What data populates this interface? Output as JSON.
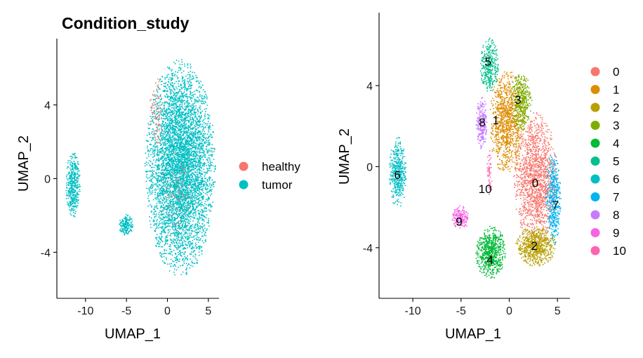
{
  "chart_data": [
    {
      "type": "scatter",
      "title": "Condition_study",
      "xlabel": "UMAP_1",
      "ylabel": "UMAP_2",
      "xlim": [
        -13.5,
        6.3
      ],
      "ylim": [
        -6.5,
        7.6
      ],
      "xticks": [
        -10,
        -5,
        0,
        5
      ],
      "yticks": [
        -4,
        0,
        4
      ],
      "legend_position": "right",
      "colors": {
        "healthy": "#F8766D",
        "tumor": "#00BFC4"
      },
      "series": [
        {
          "name": "tumor",
          "color": "#00BFC4",
          "regions": [
            {
              "cx": 1.5,
              "cy": 0.6,
              "rx": 4.3,
              "ry": 5.9,
              "n": 5200
            },
            {
              "cx": -11.6,
              "cy": -0.3,
              "rx": 0.9,
              "ry": 1.8,
              "n": 420
            },
            {
              "cx": -5.1,
              "cy": -2.5,
              "rx": 0.9,
              "ry": 0.6,
              "n": 180
            }
          ]
        },
        {
          "name": "healthy",
          "color": "#F8766D",
          "regions": [
            {
              "cx": -1.4,
              "cy": 3.3,
              "rx": 0.9,
              "ry": 2.2,
              "n": 80
            },
            {
              "cx": 1.0,
              "cy": -1.0,
              "rx": 2.0,
              "ry": 2.5,
              "n": 60
            }
          ]
        }
      ]
    },
    {
      "type": "scatter",
      "title": "",
      "xlabel": "UMAP_1",
      "ylabel": "UMAP_2",
      "xlim": [
        -13.5,
        6.3
      ],
      "ylim": [
        -6.5,
        7.6
      ],
      "xticks": [
        -10,
        -5,
        0,
        5
      ],
      "yticks": [
        -4,
        0,
        4
      ],
      "legend_position": "right",
      "series": [
        {
          "name": "0",
          "color": "#F8766D",
          "label_pos": [
            2.7,
            -0.8
          ],
          "regions": [
            {
              "cx": 2.7,
              "cy": -0.6,
              "rx": 2.3,
              "ry": 3.3,
              "n": 1500
            }
          ]
        },
        {
          "name": "1",
          "color": "#DE8C00",
          "label_pos": [
            -1.4,
            2.3
          ],
          "regions": [
            {
              "cx": -0.3,
              "cy": 2.2,
              "rx": 1.8,
              "ry": 2.6,
              "n": 1000
            }
          ]
        },
        {
          "name": "2",
          "color": "#B79F00",
          "label_pos": [
            2.6,
            -3.9
          ],
          "regions": [
            {
              "cx": 2.7,
              "cy": -3.9,
              "rx": 2.1,
              "ry": 1.0,
              "n": 650
            }
          ]
        },
        {
          "name": "3",
          "color": "#7CAE00",
          "label_pos": [
            0.9,
            3.3
          ],
          "regions": [
            {
              "cx": 1.2,
              "cy": 3.3,
              "rx": 1.1,
              "ry": 1.5,
              "n": 380
            }
          ]
        },
        {
          "name": "4",
          "color": "#00BA38",
          "label_pos": [
            -2.0,
            -4.6
          ],
          "regions": [
            {
              "cx": -2.0,
              "cy": -4.2,
              "rx": 1.6,
              "ry": 1.3,
              "n": 650
            }
          ]
        },
        {
          "name": "5",
          "color": "#00C08B",
          "label_pos": [
            -2.2,
            5.2
          ],
          "regions": [
            {
              "cx": -2.1,
              "cy": 5.0,
              "rx": 1.0,
              "ry": 1.4,
              "n": 330
            }
          ]
        },
        {
          "name": "6",
          "color": "#00BFC4",
          "label_pos": [
            -11.6,
            -0.4
          ],
          "regions": [
            {
              "cx": -11.6,
              "cy": -0.3,
              "rx": 0.9,
              "ry": 1.8,
              "n": 420
            }
          ]
        },
        {
          "name": "7",
          "color": "#00B4F0",
          "label_pos": [
            4.8,
            -1.9
          ],
          "regions": [
            {
              "cx": 4.5,
              "cy": -1.6,
              "rx": 0.8,
              "ry": 2.4,
              "n": 420
            }
          ]
        },
        {
          "name": "8",
          "color": "#C77CFF",
          "label_pos": [
            -2.8,
            2.2
          ],
          "regions": [
            {
              "cx": -2.9,
              "cy": 2.2,
              "rx": 0.6,
              "ry": 1.3,
              "n": 230
            }
          ]
        },
        {
          "name": "9",
          "color": "#F564E3",
          "label_pos": [
            -5.2,
            -2.7
          ],
          "regions": [
            {
              "cx": -5.1,
              "cy": -2.5,
              "rx": 0.9,
              "ry": 0.6,
              "n": 180
            }
          ]
        },
        {
          "name": "10",
          "color": "#FF64B0",
          "label_pos": [
            -2.5,
            -1.1
          ],
          "regions": [
            {
              "cx": -2.1,
              "cy": -0.4,
              "rx": 0.3,
              "ry": 1.2,
              "n": 50
            }
          ]
        }
      ]
    }
  ]
}
